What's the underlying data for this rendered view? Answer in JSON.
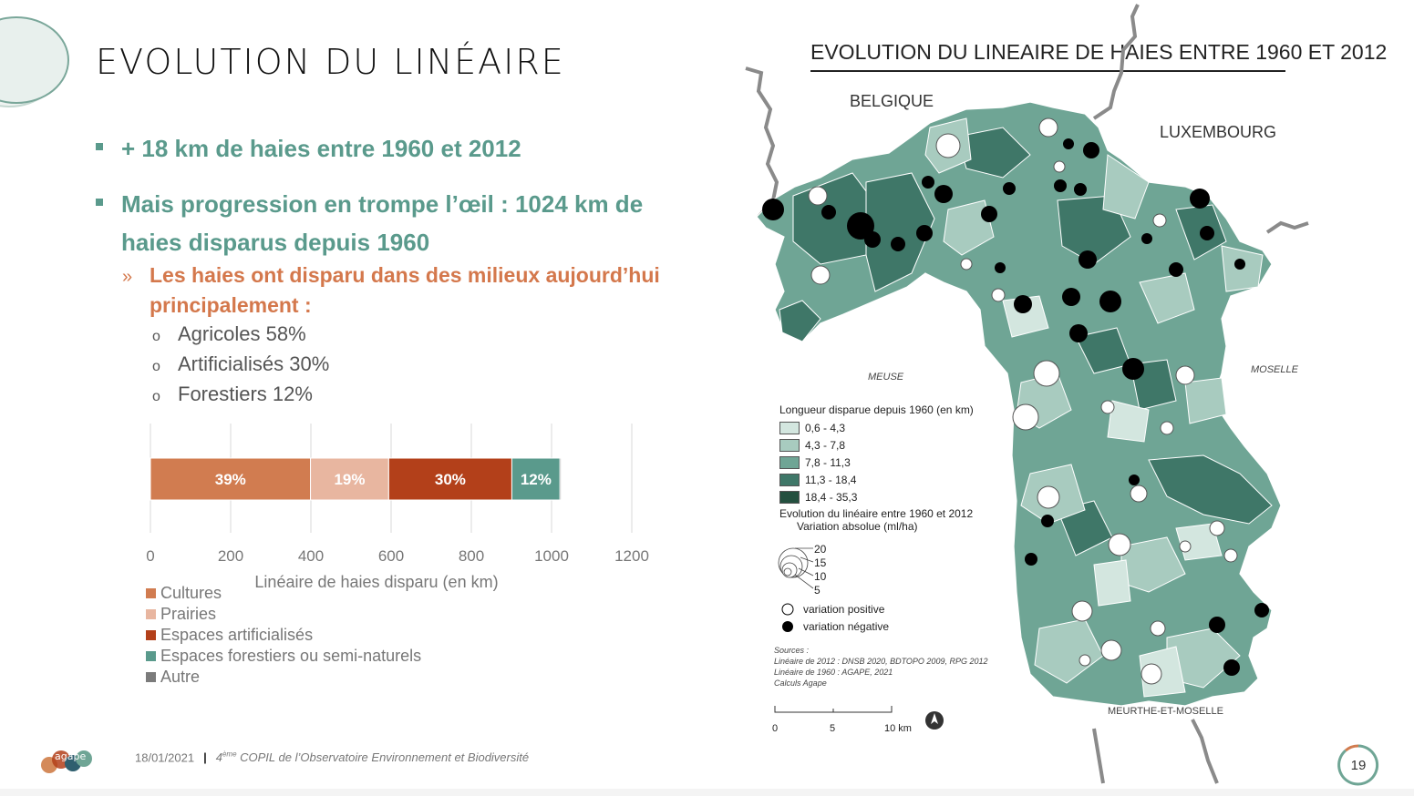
{
  "title": "EVOLUTION DU LINÉAIRE",
  "bullets": {
    "b1": "+ 18 km de haies entre 1960 et 2012",
    "b2": "Mais progression en trompe l’œil : 1024 km de haies disparus depuis 1960",
    "sub_marker": "»",
    "sub": "Les haies ont disparu dans des milieux aujourd’hui principalement :",
    "level3_marker": "o",
    "items": [
      "Agricoles 58%",
      "Artificialisés 30%",
      "Forestiers 12%"
    ]
  },
  "chart_data": {
    "type": "bar",
    "orientation": "horizontal-stacked",
    "xlabel": "Linéaire de haies disparu (en km)",
    "xlim": [
      0,
      1200
    ],
    "xticks": [
      0,
      200,
      400,
      600,
      800,
      1000,
      1200
    ],
    "grid": true,
    "legend_position": "bottom-left",
    "series": [
      {
        "name": "Cultures",
        "value": 399,
        "label": "39%",
        "color": "#d17c50"
      },
      {
        "name": "Prairies",
        "value": 195,
        "label": "19%",
        "color": "#e8b6a0"
      },
      {
        "name": "Espaces artificialisés",
        "value": 307,
        "label": "30%",
        "color": "#b3401a"
      },
      {
        "name": "Espaces forestiers ou semi-naturels",
        "value": 120,
        "label": "12%",
        "color": "#5a9a8c"
      },
      {
        "name": "Autre",
        "value": 3,
        "label": "",
        "color": "#7b7b7b"
      }
    ]
  },
  "footer": {
    "date": "18/01/2021",
    "separator": "|",
    "copil_num": "4",
    "copil_sup": "ème",
    "copil_text": " COPIL de l’Observatoire Environnement et Biodiversité",
    "page": "19",
    "logo_text": "agape"
  },
  "map": {
    "title": "EVOLUTION DU LINEAIRE DE HAIES ENTRE 1960 ET 2012",
    "labels": {
      "belgique": "BELGIQUE",
      "luxembourg": "LUXEMBOURG",
      "meuse": "MEUSE",
      "moselle": "MOSELLE",
      "mm": "MEURTHE-ET-MOSELLE"
    },
    "legend": {
      "title1": "Longueur disparue depuis 1960 (en km)",
      "classes": [
        {
          "label": "0,6 - 4,3",
          "color": "#d3e6df"
        },
        {
          "label": "4,3 - 7,8",
          "color": "#a8cbbf"
        },
        {
          "label": "7,8 - 11,3",
          "color": "#6fa595"
        },
        {
          "label": "11,3 - 18,4",
          "color": "#3f7768"
        },
        {
          "label": "18,4 - 35,3",
          "color": "#24503f"
        }
      ],
      "title2": "Evolution du linéaire entre 1960 et 2012",
      "title3": "Variation absolue (ml/ha)",
      "sizes": [
        "20",
        "15",
        "10",
        "5"
      ],
      "positive": "variation positive",
      "negative": "variation négative"
    },
    "sources": [
      "Sources :",
      "Linéaire de 2012 : DNSB 2020, BDTOPO 2009, RPG 2012",
      "Linéaire de 1960 : AGAPE, 2021",
      "Calculs Agape"
    ],
    "scale": [
      "0",
      "5",
      "10 km"
    ],
    "north": "N"
  }
}
